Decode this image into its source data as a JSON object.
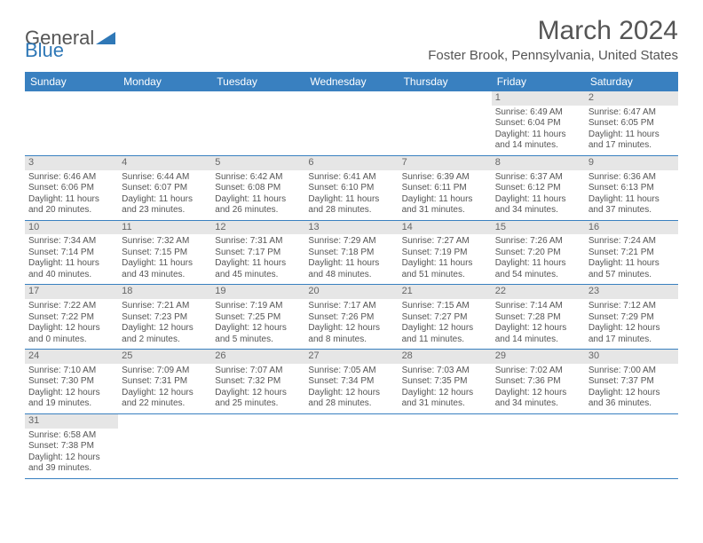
{
  "brand": {
    "general": "General",
    "blue": "Blue"
  },
  "title": "March 2024",
  "subtitle": "Foster Brook, Pennsylvania, United States",
  "colors": {
    "accent": "#3980c0",
    "row_alt": "#e6e6e6",
    "text": "#555555"
  },
  "weekdays": [
    "Sunday",
    "Monday",
    "Tuesday",
    "Wednesday",
    "Thursday",
    "Friday",
    "Saturday"
  ],
  "weeks": [
    [
      {
        "n": "",
        "sr": "",
        "ss": "",
        "dl": ""
      },
      {
        "n": "",
        "sr": "",
        "ss": "",
        "dl": ""
      },
      {
        "n": "",
        "sr": "",
        "ss": "",
        "dl": ""
      },
      {
        "n": "",
        "sr": "",
        "ss": "",
        "dl": ""
      },
      {
        "n": "",
        "sr": "",
        "ss": "",
        "dl": ""
      },
      {
        "n": "1",
        "sr": "Sunrise: 6:49 AM",
        "ss": "Sunset: 6:04 PM",
        "dl": "Daylight: 11 hours and 14 minutes."
      },
      {
        "n": "2",
        "sr": "Sunrise: 6:47 AM",
        "ss": "Sunset: 6:05 PM",
        "dl": "Daylight: 11 hours and 17 minutes."
      }
    ],
    [
      {
        "n": "3",
        "sr": "Sunrise: 6:46 AM",
        "ss": "Sunset: 6:06 PM",
        "dl": "Daylight: 11 hours and 20 minutes."
      },
      {
        "n": "4",
        "sr": "Sunrise: 6:44 AM",
        "ss": "Sunset: 6:07 PM",
        "dl": "Daylight: 11 hours and 23 minutes."
      },
      {
        "n": "5",
        "sr": "Sunrise: 6:42 AM",
        "ss": "Sunset: 6:08 PM",
        "dl": "Daylight: 11 hours and 26 minutes."
      },
      {
        "n": "6",
        "sr": "Sunrise: 6:41 AM",
        "ss": "Sunset: 6:10 PM",
        "dl": "Daylight: 11 hours and 28 minutes."
      },
      {
        "n": "7",
        "sr": "Sunrise: 6:39 AM",
        "ss": "Sunset: 6:11 PM",
        "dl": "Daylight: 11 hours and 31 minutes."
      },
      {
        "n": "8",
        "sr": "Sunrise: 6:37 AM",
        "ss": "Sunset: 6:12 PM",
        "dl": "Daylight: 11 hours and 34 minutes."
      },
      {
        "n": "9",
        "sr": "Sunrise: 6:36 AM",
        "ss": "Sunset: 6:13 PM",
        "dl": "Daylight: 11 hours and 37 minutes."
      }
    ],
    [
      {
        "n": "10",
        "sr": "Sunrise: 7:34 AM",
        "ss": "Sunset: 7:14 PM",
        "dl": "Daylight: 11 hours and 40 minutes."
      },
      {
        "n": "11",
        "sr": "Sunrise: 7:32 AM",
        "ss": "Sunset: 7:15 PM",
        "dl": "Daylight: 11 hours and 43 minutes."
      },
      {
        "n": "12",
        "sr": "Sunrise: 7:31 AM",
        "ss": "Sunset: 7:17 PM",
        "dl": "Daylight: 11 hours and 45 minutes."
      },
      {
        "n": "13",
        "sr": "Sunrise: 7:29 AM",
        "ss": "Sunset: 7:18 PM",
        "dl": "Daylight: 11 hours and 48 minutes."
      },
      {
        "n": "14",
        "sr": "Sunrise: 7:27 AM",
        "ss": "Sunset: 7:19 PM",
        "dl": "Daylight: 11 hours and 51 minutes."
      },
      {
        "n": "15",
        "sr": "Sunrise: 7:26 AM",
        "ss": "Sunset: 7:20 PM",
        "dl": "Daylight: 11 hours and 54 minutes."
      },
      {
        "n": "16",
        "sr": "Sunrise: 7:24 AM",
        "ss": "Sunset: 7:21 PM",
        "dl": "Daylight: 11 hours and 57 minutes."
      }
    ],
    [
      {
        "n": "17",
        "sr": "Sunrise: 7:22 AM",
        "ss": "Sunset: 7:22 PM",
        "dl": "Daylight: 12 hours and 0 minutes."
      },
      {
        "n": "18",
        "sr": "Sunrise: 7:21 AM",
        "ss": "Sunset: 7:23 PM",
        "dl": "Daylight: 12 hours and 2 minutes."
      },
      {
        "n": "19",
        "sr": "Sunrise: 7:19 AM",
        "ss": "Sunset: 7:25 PM",
        "dl": "Daylight: 12 hours and 5 minutes."
      },
      {
        "n": "20",
        "sr": "Sunrise: 7:17 AM",
        "ss": "Sunset: 7:26 PM",
        "dl": "Daylight: 12 hours and 8 minutes."
      },
      {
        "n": "21",
        "sr": "Sunrise: 7:15 AM",
        "ss": "Sunset: 7:27 PM",
        "dl": "Daylight: 12 hours and 11 minutes."
      },
      {
        "n": "22",
        "sr": "Sunrise: 7:14 AM",
        "ss": "Sunset: 7:28 PM",
        "dl": "Daylight: 12 hours and 14 minutes."
      },
      {
        "n": "23",
        "sr": "Sunrise: 7:12 AM",
        "ss": "Sunset: 7:29 PM",
        "dl": "Daylight: 12 hours and 17 minutes."
      }
    ],
    [
      {
        "n": "24",
        "sr": "Sunrise: 7:10 AM",
        "ss": "Sunset: 7:30 PM",
        "dl": "Daylight: 12 hours and 19 minutes."
      },
      {
        "n": "25",
        "sr": "Sunrise: 7:09 AM",
        "ss": "Sunset: 7:31 PM",
        "dl": "Daylight: 12 hours and 22 minutes."
      },
      {
        "n": "26",
        "sr": "Sunrise: 7:07 AM",
        "ss": "Sunset: 7:32 PM",
        "dl": "Daylight: 12 hours and 25 minutes."
      },
      {
        "n": "27",
        "sr": "Sunrise: 7:05 AM",
        "ss": "Sunset: 7:34 PM",
        "dl": "Daylight: 12 hours and 28 minutes."
      },
      {
        "n": "28",
        "sr": "Sunrise: 7:03 AM",
        "ss": "Sunset: 7:35 PM",
        "dl": "Daylight: 12 hours and 31 minutes."
      },
      {
        "n": "29",
        "sr": "Sunrise: 7:02 AM",
        "ss": "Sunset: 7:36 PM",
        "dl": "Daylight: 12 hours and 34 minutes."
      },
      {
        "n": "30",
        "sr": "Sunrise: 7:00 AM",
        "ss": "Sunset: 7:37 PM",
        "dl": "Daylight: 12 hours and 36 minutes."
      }
    ],
    [
      {
        "n": "31",
        "sr": "Sunrise: 6:58 AM",
        "ss": "Sunset: 7:38 PM",
        "dl": "Daylight: 12 hours and 39 minutes."
      },
      {
        "n": "",
        "sr": "",
        "ss": "",
        "dl": ""
      },
      {
        "n": "",
        "sr": "",
        "ss": "",
        "dl": ""
      },
      {
        "n": "",
        "sr": "",
        "ss": "",
        "dl": ""
      },
      {
        "n": "",
        "sr": "",
        "ss": "",
        "dl": ""
      },
      {
        "n": "",
        "sr": "",
        "ss": "",
        "dl": ""
      },
      {
        "n": "",
        "sr": "",
        "ss": "",
        "dl": ""
      }
    ]
  ]
}
